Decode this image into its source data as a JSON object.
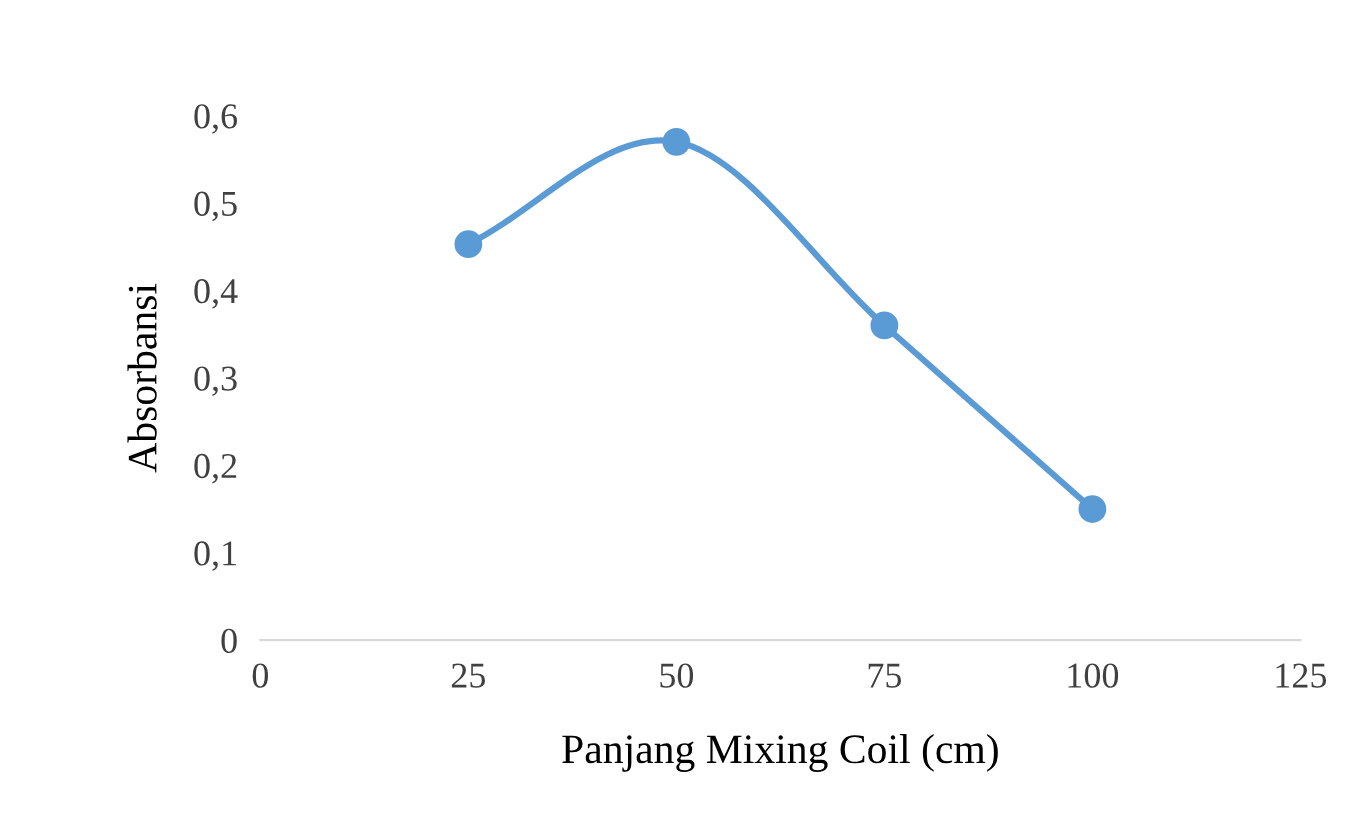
{
  "chart_data": {
    "type": "line",
    "xlabel": "Panjang Mixing Coil (cm)",
    "ylabel": "Absorbansi",
    "x": [
      25,
      50,
      75,
      100
    ],
    "series": [
      {
        "color": "#5b9bd5",
        "values": [
          0.453,
          0.57,
          0.36,
          0.15
        ]
      }
    ],
    "xlim": [
      0,
      125
    ],
    "xticks": [
      0,
      25,
      50,
      75,
      100,
      125
    ],
    "ylim": [
      0,
      0.6
    ],
    "yticks": [
      {
        "value": 0,
        "label": "0"
      },
      {
        "value": 0.1,
        "label": "0,1"
      },
      {
        "value": 0.2,
        "label": "0,2"
      },
      {
        "value": 0.3,
        "label": "0,3"
      },
      {
        "value": 0.4,
        "label": "0,4"
      },
      {
        "value": 0.5,
        "label": "0,5"
      },
      {
        "value": 0.6,
        "label": "0,6"
      }
    ],
    "marker": "circle",
    "line_style": "solid",
    "grid": false,
    "legend": false
  }
}
